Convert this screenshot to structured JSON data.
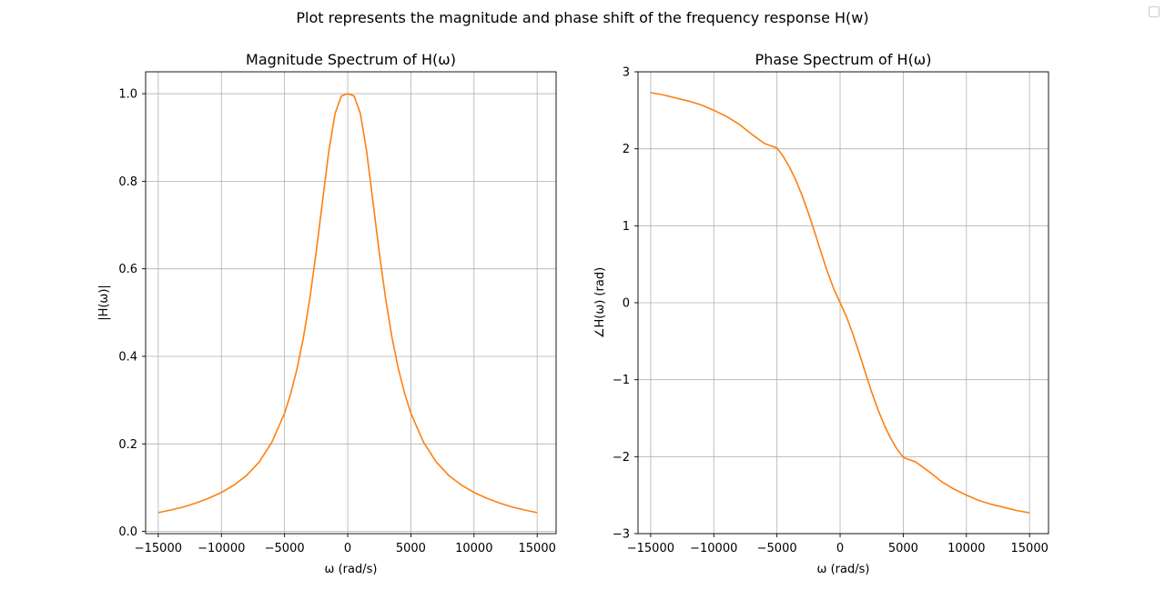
{
  "figure": {
    "suptitle": "Plot represents the magnitude and phase shift of the frequency response H(w)"
  },
  "chart_data": [
    {
      "type": "line",
      "title": "Magnitude Spectrum of H(ω)",
      "xlabel": "ω (rad/s)",
      "ylabel": "|H(ω)|",
      "xlim": [
        -16000,
        16500
      ],
      "ylim": [
        -0.005,
        1.05
      ],
      "xticks": [
        -15000,
        -10000,
        -5000,
        0,
        5000,
        10000,
        15000
      ],
      "xtick_labels": [
        "−15000",
        "−10000",
        "−5000",
        "0",
        "5000",
        "10000",
        "15000"
      ],
      "yticks": [
        0.0,
        0.2,
        0.4,
        0.6,
        0.8,
        1.0
      ],
      "ytick_labels": [
        "0.0",
        "0.2",
        "0.4",
        "0.6",
        "0.8",
        "1.0"
      ],
      "grid": true,
      "line_color": "#ff7f0e",
      "series": [
        {
          "x": [
            -15000,
            -14000,
            -13000,
            -12000,
            -11000,
            -10000,
            -9000,
            -8000,
            -7000,
            -6000,
            -5000,
            -4500,
            -4000,
            -3500,
            -3000,
            -2500,
            -2000,
            -1500,
            -1000,
            -500,
            0,
            500,
            1000,
            1500,
            2000,
            2500,
            3000,
            3500,
            4000,
            4500,
            5000,
            6000,
            7000,
            8000,
            9000,
            10000,
            11000,
            12000,
            13000,
            14000,
            15000
          ],
          "y": [
            0.043,
            0.049,
            0.056,
            0.065,
            0.076,
            0.089,
            0.106,
            0.128,
            0.159,
            0.204,
            0.27,
            0.316,
            0.373,
            0.444,
            0.532,
            0.637,
            0.753,
            0.868,
            0.955,
            0.995,
            1.0,
            0.995,
            0.955,
            0.868,
            0.753,
            0.637,
            0.532,
            0.444,
            0.373,
            0.316,
            0.27,
            0.204,
            0.159,
            0.128,
            0.106,
            0.089,
            0.076,
            0.065,
            0.056,
            0.049,
            0.043
          ]
        }
      ]
    },
    {
      "type": "line",
      "title": "Phase Spectrum of H(ω)",
      "xlabel": "ω (rad/s)",
      "ylabel": "∠H(ω) (rad)",
      "xlim": [
        -16000,
        16500
      ],
      "ylim": [
        -3,
        3
      ],
      "xticks": [
        -15000,
        -10000,
        -5000,
        0,
        5000,
        10000,
        15000
      ],
      "xtick_labels": [
        "−15000",
        "−10000",
        "−5000",
        "0",
        "5000",
        "10000",
        "15000"
      ],
      "yticks": [
        -3,
        -2,
        -1,
        0,
        1,
        2,
        3
      ],
      "ytick_labels": [
        "−3",
        "−2",
        "−1",
        "0",
        "1",
        "2",
        "3"
      ],
      "grid": true,
      "line_color": "#ff7f0e",
      "series": [
        {
          "x": [
            -15000,
            -14000,
            -13000,
            -12000,
            -11000,
            -10000,
            -9000,
            -8000,
            -7000,
            -6000,
            -5000,
            -4500,
            -4000,
            -3500,
            -3000,
            -2500,
            -2000,
            -1500,
            -1000,
            -500,
            0,
            500,
            1000,
            1500,
            2000,
            2500,
            3000,
            3500,
            4000,
            4500,
            5000,
            6000,
            7000,
            8000,
            9000,
            10000,
            11000,
            12000,
            13000,
            14000,
            15000
          ],
          "y": [
            2.73,
            2.7,
            2.66,
            2.62,
            2.57,
            2.5,
            2.42,
            2.32,
            2.19,
            2.07,
            2.01,
            1.9,
            1.76,
            1.59,
            1.39,
            1.16,
            0.91,
            0.65,
            0.4,
            0.18,
            0.0,
            -0.18,
            -0.4,
            -0.65,
            -0.91,
            -1.16,
            -1.39,
            -1.59,
            -1.76,
            -1.9,
            -2.01,
            -2.07,
            -2.19,
            -2.32,
            -2.42,
            -2.5,
            -2.57,
            -2.62,
            -2.66,
            -2.7,
            -2.73
          ]
        }
      ]
    }
  ]
}
